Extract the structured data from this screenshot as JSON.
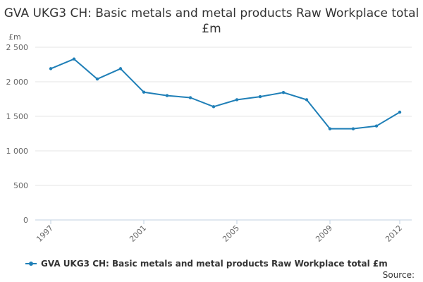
{
  "chart_data": {
    "type": "line",
    "title": "GVA UKG3 CH: Basic metals and metal products Raw Workplace total £m",
    "ylabel": "£m",
    "xlabel": "",
    "x": [
      1997,
      1998,
      1999,
      2000,
      2001,
      2002,
      2003,
      2004,
      2005,
      2006,
      2007,
      2008,
      2009,
      2010,
      2011,
      2012
    ],
    "x_tick_labels": [
      "1997",
      "2001",
      "2005",
      "2009",
      "2012"
    ],
    "y_tick_labels": [
      "0",
      "500",
      "1 000",
      "1 500",
      "2 000",
      "2 500"
    ],
    "ylim": [
      0,
      2500
    ],
    "grid": true,
    "legend_position": "bottom-left",
    "series": [
      {
        "name": "GVA UKG3 CH: Basic metals and metal products Raw Workplace total £m",
        "color": "#1f7fb7",
        "values": [
          2190,
          2330,
          2040,
          2190,
          1850,
          1800,
          1770,
          1640,
          1740,
          1785,
          1845,
          1740,
          1320,
          1320,
          1360,
          1560
        ]
      }
    ]
  },
  "footer": {
    "source_label": "Source:"
  }
}
